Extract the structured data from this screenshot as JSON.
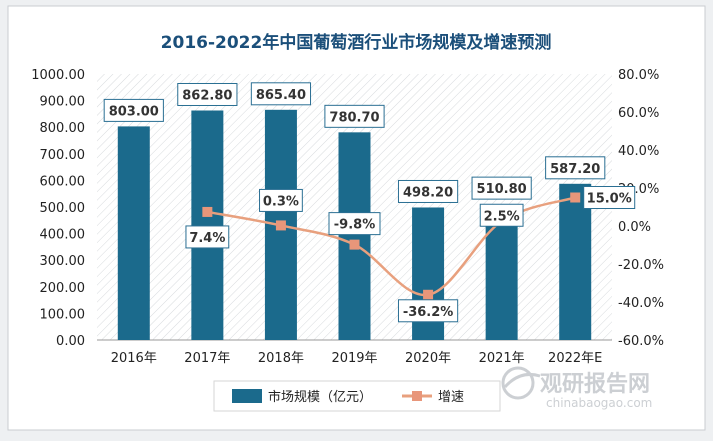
{
  "chart_data": {
    "type": "bar+line",
    "title": "2016-2022年中国葡萄酒行业市场规模及增速预测",
    "categories": [
      "2016年",
      "2017年",
      "2018年",
      "2019年",
      "2020年",
      "2021年",
      "2022年E"
    ],
    "series": [
      {
        "name": "市场规模（亿元）",
        "type": "bar",
        "axis": "left",
        "values": [
          803.0,
          862.8,
          865.4,
          780.7,
          498.2,
          510.8,
          587.2
        ],
        "labels": [
          "803.00",
          "862.80",
          "865.40",
          "780.70",
          "498.20",
          "510.80",
          "587.20"
        ]
      },
      {
        "name": "增速",
        "type": "line",
        "axis": "right",
        "values": [
          null,
          7.4,
          0.3,
          -9.8,
          -36.2,
          2.5,
          15.0
        ],
        "labels": [
          "",
          "7.4%",
          "0.3%",
          "-9.8%",
          "-36.2%",
          "2.5%",
          "15.0%"
        ]
      }
    ],
    "y_left": {
      "range": [
        0,
        1000
      ],
      "ticks": [
        "0.00",
        "100.00",
        "200.00",
        "300.00",
        "400.00",
        "500.00",
        "600.00",
        "700.00",
        "800.00",
        "900.00",
        "1000.00"
      ]
    },
    "y_right": {
      "range": [
        -60,
        80
      ],
      "ticks": [
        "-60.0%",
        "-40.0%",
        "-20.0%",
        "0.0%",
        "20.0%",
        "40.0%",
        "60.0%",
        "80.0%"
      ]
    },
    "grid": false,
    "legend_position": "bottom",
    "colors": {
      "bar": "#1b6a8c",
      "line": "#e8a07e",
      "marker": "#e8967a",
      "title": "#1b4f7a",
      "label_border": "#2a6f93"
    }
  },
  "watermark": {
    "brand": "观研报告网",
    "url": "chinabaogao.com"
  }
}
